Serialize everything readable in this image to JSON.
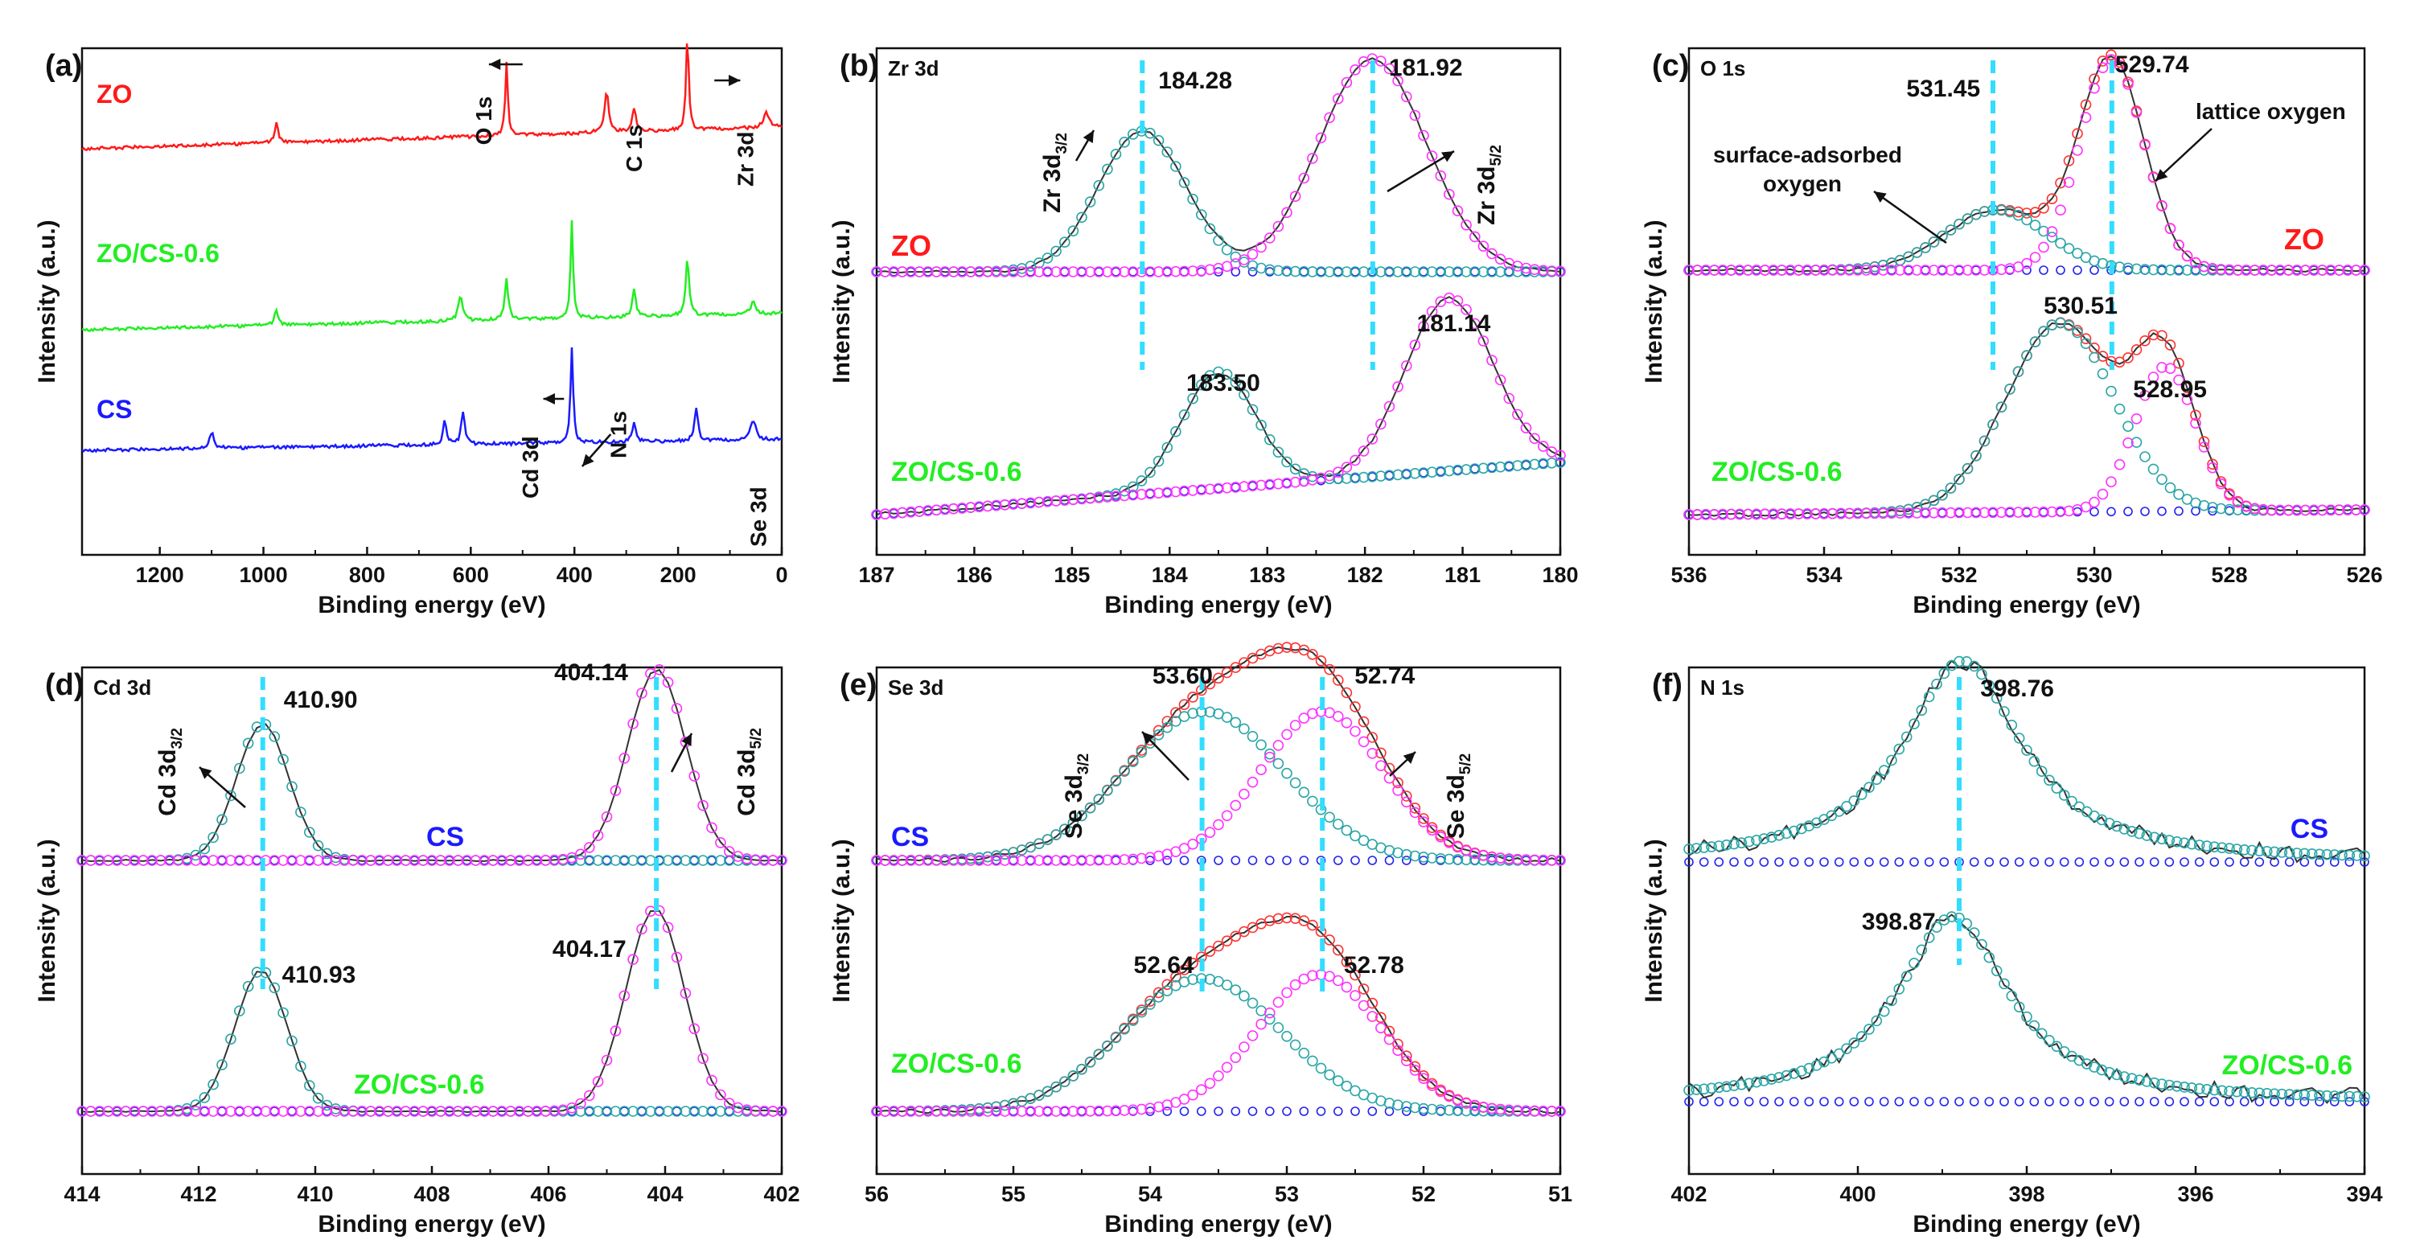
{
  "figure": {
    "colors": {
      "red": "#ff1a1a",
      "green": "#22ee22",
      "blue": "#1a1aff",
      "teal": "#2aa6a6",
      "magenta": "#ff33ff",
      "cyan": "#33ddff",
      "black": "#222222",
      "redfit": "#ff3333",
      "bluebase": "#2222ee"
    }
  },
  "chart_data": [
    {
      "id": "a",
      "type": "line",
      "panel_label": "(a)",
      "xlabel": "Binding energy (eV)",
      "ylabel": "Intensity (a.u.)",
      "xlim": [
        1350,
        0
      ],
      "xticks": [
        1200,
        1000,
        800,
        600,
        400,
        200,
        0
      ],
      "series": [
        {
          "name": "ZO",
          "color": "red"
        },
        {
          "name": "ZO/CS-0.6",
          "color": "green"
        },
        {
          "name": "CS",
          "color": "blue"
        }
      ],
      "peak_labels": [
        "O 1s",
        "C 1s",
        "Zr 3d",
        "Cd 3d",
        "N 1s",
        "Se 3d"
      ]
    },
    {
      "id": "b",
      "type": "line",
      "panel_label": "(b)",
      "title": "Zr 3d",
      "xlabel": "Binding energy (eV)",
      "ylabel": "Intensity (a.u.)",
      "xlim": [
        187,
        180
      ],
      "xticks": [
        187,
        186,
        185,
        184,
        183,
        182,
        181,
        180
      ],
      "samples": [
        "ZO",
        "ZO/CS-0.6"
      ],
      "peaks": {
        "ZO": [
          184.28,
          181.92
        ],
        "ZO/CS-0.6": [
          183.5,
          181.14
        ]
      },
      "peak_value_labels": [
        "184.28",
        "181.92",
        "183.50",
        "181.14"
      ],
      "component_labels": [
        {
          "main": "Zr 3d",
          "sub": "3/2"
        },
        {
          "main": "Zr 3d",
          "sub": "5/2"
        }
      ]
    },
    {
      "id": "c",
      "type": "line",
      "panel_label": "(c)",
      "title": "O 1s",
      "xlabel": "Binding energy (eV)",
      "ylabel": "Intensity (a.u.)",
      "xlim": [
        536,
        526
      ],
      "xticks": [
        536,
        534,
        532,
        530,
        528,
        526
      ],
      "samples": [
        "ZO",
        "ZO/CS-0.6"
      ],
      "peaks": {
        "ZO": [
          531.45,
          529.74
        ],
        "ZO/CS-0.6": [
          530.51,
          528.95
        ]
      },
      "peak_value_labels": [
        "531.45",
        "529.74",
        "530.51",
        "528.95"
      ],
      "annotations": [
        "surface-adsorbed",
        "oxygen",
        "lattice oxygen"
      ]
    },
    {
      "id": "d",
      "type": "line",
      "panel_label": "(d)",
      "title": "Cd 3d",
      "xlabel": "Binding energy (eV)",
      "ylabel": "Intensity (a.u.)",
      "xlim": [
        414,
        402
      ],
      "xticks": [
        414,
        412,
        410,
        408,
        406,
        404,
        402
      ],
      "samples": [
        "CS",
        "ZO/CS-0.6"
      ],
      "peaks": {
        "CS": [
          410.9,
          404.14
        ],
        "ZO/CS-0.6": [
          410.93,
          404.17
        ]
      },
      "peak_value_labels": [
        "410.90",
        "404.14",
        "410.93",
        "404.17"
      ],
      "component_labels": [
        {
          "main": "Cd 3d",
          "sub": "3/2"
        },
        {
          "main": "Cd 3d",
          "sub": "5/2"
        }
      ]
    },
    {
      "id": "e",
      "type": "line",
      "panel_label": "(e)",
      "title": "Se 3d",
      "xlabel": "Binding energy (eV)",
      "ylabel": "Intensity (a.u.)",
      "xlim": [
        56,
        51
      ],
      "xticks": [
        56,
        55,
        54,
        53,
        52,
        51
      ],
      "samples": [
        "CS",
        "ZO/CS-0.6"
      ],
      "peaks": {
        "CS": [
          53.6,
          52.74
        ],
        "ZO/CS-0.6": [
          52.64,
          52.78
        ]
      },
      "peak_value_labels": [
        "53.60",
        "52.74",
        "52.64",
        "52.78"
      ],
      "component_labels": [
        {
          "main": "Se 3d",
          "sub": "3/2"
        },
        {
          "main": "Se 3d",
          "sub": "5/2"
        }
      ]
    },
    {
      "id": "f",
      "type": "line",
      "panel_label": "(f)",
      "title": "N 1s",
      "xlabel": "Binding energy (eV)",
      "ylabel": "Intensity (a.u.)",
      "xlim": [
        402,
        394
      ],
      "xticks": [
        402,
        400,
        398,
        396,
        394
      ],
      "samples": [
        "CS",
        "ZO/CS-0.6"
      ],
      "peaks": {
        "CS": [
          398.76
        ],
        "ZO/CS-0.6": [
          398.87
        ]
      },
      "peak_value_labels": [
        "398.76",
        "398.87"
      ]
    }
  ]
}
